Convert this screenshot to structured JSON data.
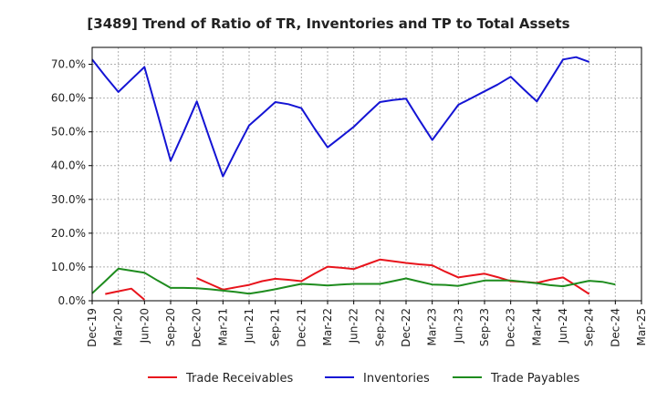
{
  "chart_data": {
    "type": "line",
    "title": "[3489]  Trend of Ratio of TR, Inventories and TP to Total Assets",
    "xlabel": "",
    "ylabel": "",
    "ylim": [
      0,
      75
    ],
    "y_ticks": [
      0,
      10,
      20,
      30,
      40,
      50,
      60,
      70
    ],
    "y_tick_labels": [
      "0.0%",
      "10.0%",
      "20.0%",
      "30.0%",
      "40.0%",
      "50.0%",
      "60.0%",
      "70.0%"
    ],
    "x_tick_labels": [
      "Dec-19",
      "Mar-20",
      "Jun-20",
      "Sep-20",
      "Dec-20",
      "Mar-21",
      "Jun-21",
      "Sep-21",
      "Dec-21",
      "Mar-22",
      "Jun-22",
      "Sep-22",
      "Dec-22",
      "Mar-23",
      "Jun-23",
      "Sep-23",
      "Dec-23",
      "Mar-24",
      "Jun-24",
      "Sep-24",
      "Dec-24",
      "Mar-25"
    ],
    "grid": true,
    "legend_position": "bottom",
    "series": [
      {
        "name": "Trade Receivables",
        "color": "#e8141c",
        "values": [
          null,
          2.0,
          2.8,
          3.6,
          0.3,
          null,
          null,
          null,
          6.7,
          5.0,
          3.3,
          4.0,
          4.7,
          5.8,
          6.5,
          6.2,
          5.8,
          8.0,
          10.1,
          9.8,
          9.4,
          10.8,
          12.2,
          11.7,
          11.2,
          10.8,
          10.5,
          8.6,
          6.9,
          7.5,
          8.0,
          7.0,
          5.8,
          5.6,
          5.3,
          6.2,
          6.9,
          4.5,
          2.0
        ]
      },
      {
        "name": "Inventories",
        "color": "#1414d4",
        "values": [
          71.4,
          66.5,
          61.8,
          65.5,
          69.2,
          55.3,
          41.4,
          50.0,
          59.0,
          47.8,
          36.8,
          44.5,
          51.9,
          55.3,
          58.8,
          58.2,
          57.0,
          51.0,
          45.4,
          48.4,
          51.5,
          55.2,
          58.8,
          59.4,
          59.8,
          53.6,
          47.6,
          52.8,
          58.0,
          60.0,
          62.0,
          64.0,
          66.3,
          62.6,
          59.0,
          65.2,
          71.4,
          72.1,
          70.7
        ]
      },
      {
        "name": "Trade Payables",
        "color": "#1e8c1e",
        "values": [
          2.2,
          5.8,
          9.5,
          8.9,
          8.3,
          6.0,
          3.8,
          3.8,
          3.7,
          3.4,
          3.0,
          2.6,
          2.1,
          2.7,
          3.4,
          4.2,
          5.0,
          4.8,
          4.5,
          4.8,
          5.0,
          5.0,
          5.0,
          5.8,
          6.6,
          5.7,
          4.8,
          4.7,
          4.4,
          5.2,
          6.0,
          6.0,
          6.0,
          5.6,
          5.2,
          4.6,
          4.3,
          5.1,
          5.9,
          5.6,
          4.8
        ]
      }
    ],
    "series_x_start": [
      0,
      0,
      0
    ],
    "x_step_quarters": 0.5
  }
}
